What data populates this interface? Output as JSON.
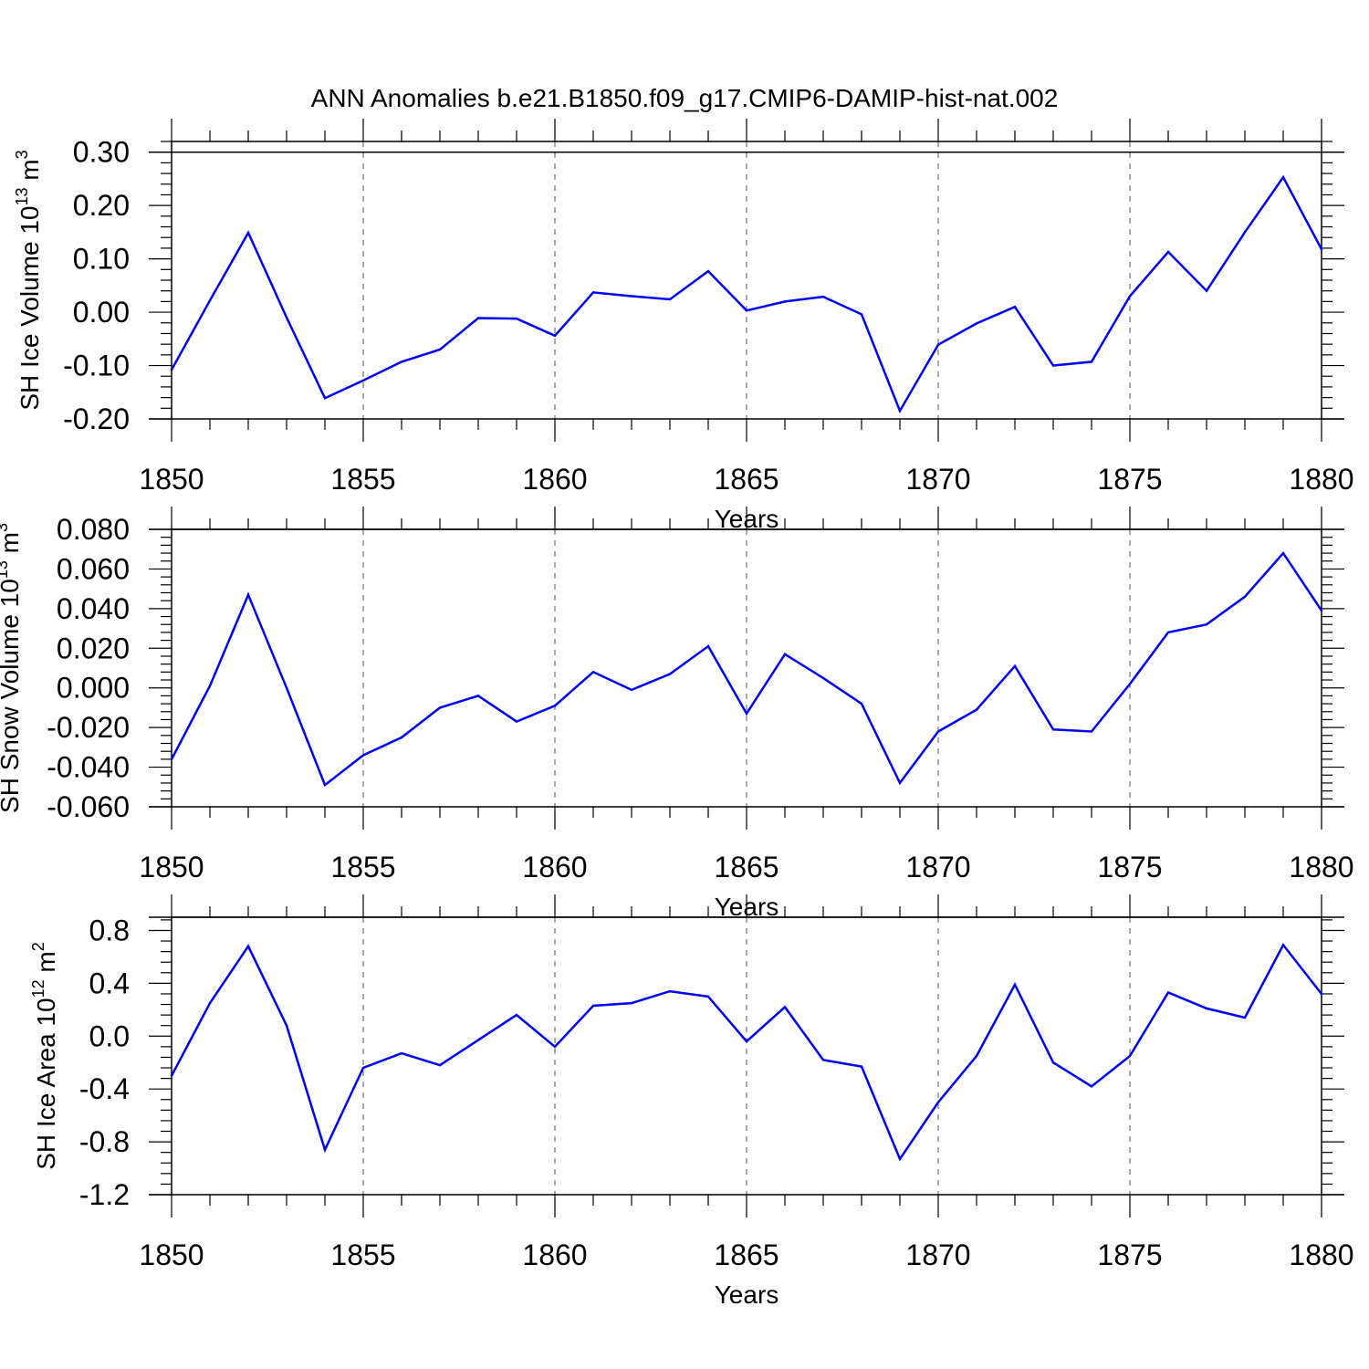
{
  "figure_title": "ANN Anomalies b.e21.B1850.f09_g17.CMIP6-DAMIP-hist-nat.002",
  "line_color": "#0000ff",
  "chart_data": [
    {
      "type": "line",
      "title": "",
      "ylabel": "SH Ice Volume 10",
      "ylabel_exp": "13",
      "ylabel_unit": " m",
      "ylabel_unit_exp": "3",
      "xlabel": "Years",
      "xlim": [
        1850,
        1880
      ],
      "ylim": [
        -0.2,
        0.32
      ],
      "xticks": [
        "1850",
        "1855",
        "1860",
        "1865",
        "1870",
        "1875",
        "1880"
      ],
      "yticks": [
        "0.30",
        "0.20",
        "0.10",
        "0.00",
        "-0.10",
        "-0.20"
      ],
      "ytick_values": [
        0.3,
        0.2,
        0.1,
        0.0,
        -0.1,
        -0.2
      ],
      "ref_line": 0.3,
      "grid": "dashed-vertical",
      "x": [
        1850,
        1851,
        1852,
        1853,
        1854,
        1855,
        1856,
        1857,
        1858,
        1859,
        1860,
        1861,
        1862,
        1863,
        1864,
        1865,
        1866,
        1867,
        1868,
        1869,
        1870,
        1871,
        1872,
        1873,
        1874,
        1875,
        1876,
        1877,
        1878,
        1879,
        1880
      ],
      "series": [
        {
          "name": "SH Ice Volume",
          "values": [
            -0.108,
            0.022,
            0.149,
            -0.01,
            -0.161,
            -0.128,
            -0.093,
            -0.07,
            -0.011,
            -0.012,
            -0.044,
            0.037,
            0.03,
            0.024,
            0.077,
            0.003,
            0.02,
            0.029,
            -0.004,
            -0.185,
            -0.061,
            -0.021,
            0.01,
            -0.1,
            -0.093,
            0.03,
            0.113,
            0.04,
            0.15,
            0.253,
            0.118
          ]
        }
      ]
    },
    {
      "type": "line",
      "title": "",
      "ylabel": "SH Snow Volume 10",
      "ylabel_exp": "13",
      "ylabel_unit": " m",
      "ylabel_unit_exp": "3",
      "xlabel": "Years",
      "xlim": [
        1850,
        1880
      ],
      "ylim": [
        -0.06,
        0.08
      ],
      "xticks": [
        "1850",
        "1855",
        "1860",
        "1865",
        "1870",
        "1875",
        "1880"
      ],
      "yticks": [
        "0.080",
        "0.060",
        "0.040",
        "0.020",
        "0.000",
        "-0.020",
        "-0.040",
        "-0.060"
      ],
      "ytick_values": [
        0.08,
        0.06,
        0.04,
        0.02,
        0.0,
        -0.02,
        -0.04,
        -0.06
      ],
      "ref_line": 0.08,
      "grid": "dashed-vertical",
      "x": [
        1850,
        1851,
        1852,
        1853,
        1854,
        1855,
        1856,
        1857,
        1858,
        1859,
        1860,
        1861,
        1862,
        1863,
        1864,
        1865,
        1866,
        1867,
        1868,
        1869,
        1870,
        1871,
        1872,
        1873,
        1874,
        1875,
        1876,
        1877,
        1878,
        1879,
        1880
      ],
      "series": [
        {
          "name": "SH Snow Volume",
          "values": [
            -0.036,
            0.001,
            0.047,
            0.0,
            -0.049,
            -0.034,
            -0.025,
            -0.01,
            -0.004,
            -0.017,
            -0.009,
            0.008,
            -0.001,
            0.007,
            0.021,
            -0.013,
            0.017,
            0.005,
            -0.008,
            -0.048,
            -0.022,
            -0.011,
            0.011,
            -0.021,
            -0.022,
            0.002,
            0.028,
            0.032,
            0.046,
            0.068,
            0.039
          ]
        }
      ]
    },
    {
      "type": "line",
      "title": "",
      "ylabel": "SH Ice Area 10",
      "ylabel_exp": "12",
      "ylabel_unit": " m",
      "ylabel_unit_exp": "2",
      "xlabel": "Years",
      "xlim": [
        1850,
        1880
      ],
      "ylim": [
        -1.2,
        0.9
      ],
      "xticks": [
        "1850",
        "1855",
        "1860",
        "1865",
        "1870",
        "1875",
        "1880"
      ],
      "yticks": [
        "0.8",
        "0.4",
        "0.0",
        "-0.4",
        "-0.8",
        "-1.2"
      ],
      "ytick_values": [
        0.8,
        0.4,
        0.0,
        -0.4,
        -0.8,
        -1.2
      ],
      "ref_line": 0.9,
      "grid": "dashed-vertical",
      "x": [
        1850,
        1851,
        1852,
        1853,
        1854,
        1855,
        1856,
        1857,
        1858,
        1859,
        1860,
        1861,
        1862,
        1863,
        1864,
        1865,
        1866,
        1867,
        1868,
        1869,
        1870,
        1871,
        1872,
        1873,
        1874,
        1875,
        1876,
        1877,
        1878,
        1879,
        1880
      ],
      "series": [
        {
          "name": "SH Ice Area",
          "values": [
            -0.3,
            0.25,
            0.68,
            0.08,
            -0.86,
            -0.24,
            -0.13,
            -0.22,
            -0.03,
            0.16,
            -0.08,
            0.23,
            0.25,
            0.34,
            0.3,
            -0.04,
            0.22,
            -0.18,
            -0.23,
            -0.93,
            -0.5,
            -0.15,
            0.39,
            -0.2,
            -0.38,
            -0.15,
            0.33,
            0.21,
            0.14,
            0.69,
            0.32
          ]
        }
      ]
    }
  ]
}
